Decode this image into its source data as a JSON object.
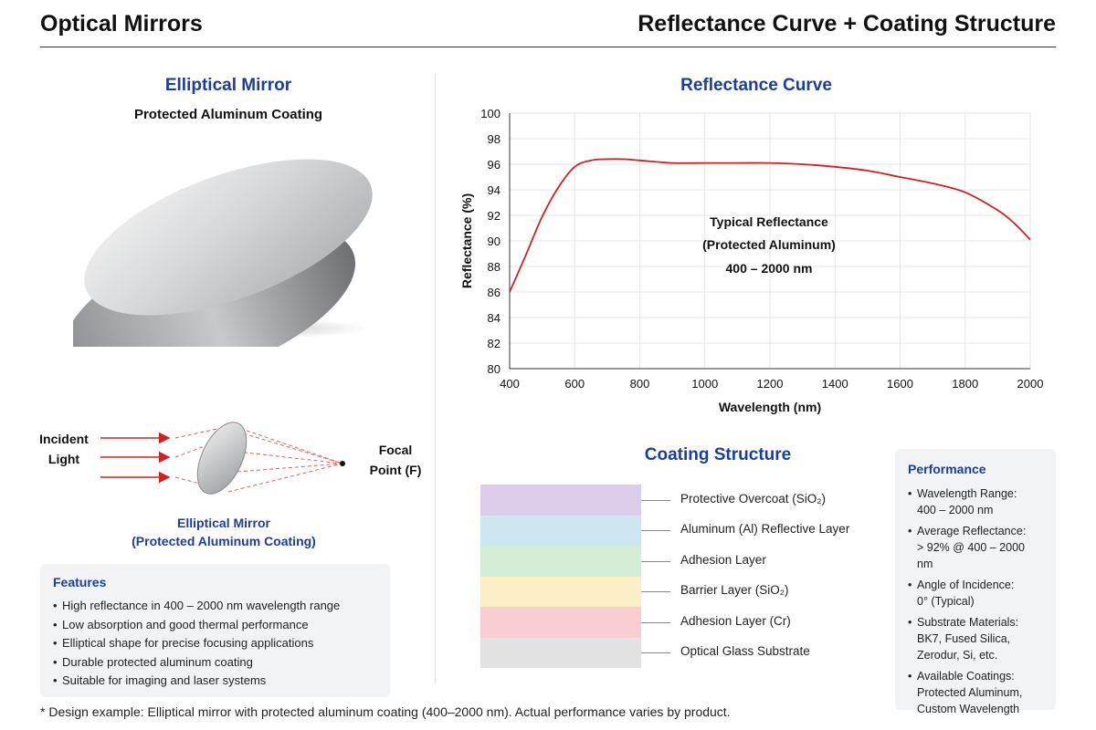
{
  "header": {
    "left_title": "Optical Mirrors",
    "right_title": "Reflectance Curve + Coating Structure"
  },
  "mirror": {
    "title": "Elliptical Mirror",
    "subtitle": "Protected Aluminum Coating",
    "diagram": {
      "incident_line1": "Incident",
      "incident_line2": "Light",
      "focal_line1": "Focal",
      "focal_line2": "Point (F)",
      "caption_line1": "Elliptical Mirror",
      "caption_line2": "(Protected Aluminum Coating)"
    }
  },
  "features": {
    "title": "Features",
    "items": [
      "High reflectance in 400 – 2000 nm wavelength range",
      "Low absorption and good thermal performance",
      "Elliptical shape for precise focusing applications",
      "Durable protected aluminum coating",
      "Suitable for imaging and laser systems"
    ]
  },
  "reflectance": {
    "title": "Reflectance Curve",
    "annotation_line1": "Typical Reflectance",
    "annotation_line2": "(Protected Aluminum)",
    "annotation_line3": "400 – 2000 nm"
  },
  "chart_data": {
    "type": "line",
    "title": "Reflectance Curve",
    "xlabel": "Wavelength (nm)",
    "ylabel": "Reflectance (%)",
    "xlim": [
      400,
      2000
    ],
    "ylim": [
      80,
      100
    ],
    "xticks": [
      400,
      600,
      800,
      1000,
      1200,
      1400,
      1600,
      1800,
      2000
    ],
    "yticks": [
      80,
      82,
      84,
      86,
      88,
      90,
      92,
      94,
      96,
      98,
      100
    ],
    "grid": true,
    "line_color": "#d42020",
    "x": [
      400,
      450,
      500,
      550,
      600,
      650,
      700,
      750,
      800,
      900,
      1000,
      1100,
      1200,
      1300,
      1400,
      1500,
      1600,
      1700,
      1800,
      1900,
      1950,
      2000
    ],
    "y": [
      86.0,
      88.9,
      91.9,
      94.2,
      95.8,
      96.3,
      96.4,
      96.4,
      96.3,
      96.1,
      96.1,
      96.1,
      96.1,
      96.0,
      95.8,
      95.5,
      95.0,
      94.5,
      93.8,
      92.4,
      91.4,
      90.1
    ]
  },
  "coating": {
    "title": "Coating Structure",
    "layers": [
      {
        "label": "Protective Overcoat (SiO₂)",
        "color": "#dccdea"
      },
      {
        "label": "Aluminum (Al) Reflective Layer",
        "color": "#cfe7f3"
      },
      {
        "label": "Adhesion Layer",
        "color": "#d5ecd7"
      },
      {
        "label": "Barrier Layer (SiO₂)",
        "color": "#fbefc7"
      },
      {
        "label": "Adhesion Layer (Cr)",
        "color": "#f8ced3"
      },
      {
        "label": "Optical Glass Substrate",
        "color": "#e2e2e2"
      }
    ]
  },
  "performance": {
    "title": "Performance",
    "items": [
      {
        "line1": "Wavelength Range:",
        "line2": "400 – 2000 nm"
      },
      {
        "line1": "Average Reflectance:",
        "line2": "> 92% @ 400 – 2000 nm"
      },
      {
        "line1": "Angle of Incidence:",
        "line2": "0° (Typical)"
      },
      {
        "line1": "Substrate Materials:",
        "line2": "BK7, Fused Silica,",
        "line3": "Zerodur, Si, etc."
      },
      {
        "line1": "Available Coatings:",
        "line2": "Protected Aluminum,",
        "line3": "Custom Wavelength"
      }
    ]
  },
  "footnote": "* Design example: Elliptical mirror with protected aluminum coating (400–2000 nm). Actual performance varies by product."
}
